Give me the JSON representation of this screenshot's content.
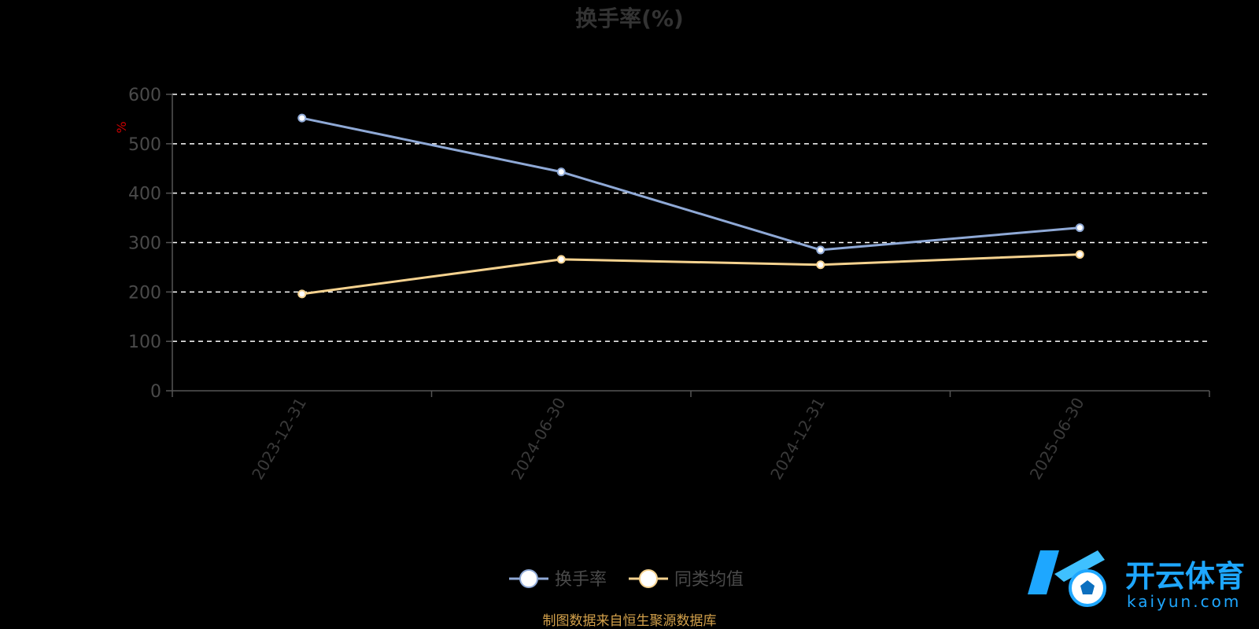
{
  "chart_data": {
    "type": "line",
    "title": "换手率(%)",
    "ylabel": "%",
    "xlabel": "",
    "categories": [
      "2023-12-31",
      "2024-06-30",
      "2024-12-31",
      "2025-06-30"
    ],
    "ylim": [
      0,
      600
    ],
    "yticks": [
      0,
      100,
      200,
      300,
      400,
      500,
      600
    ],
    "grid": true,
    "legend_position": "bottom-center",
    "series": [
      {
        "name": "换手率",
        "values": [
          552,
          443,
          285,
          330
        ],
        "color": "#8fa9d6"
      },
      {
        "name": "同类均值",
        "values": [
          196,
          266,
          255,
          276
        ],
        "color": "#f5d28f"
      }
    ]
  },
  "source_note": "制图数据来自恒生聚源数据库",
  "watermark": {
    "brand_cn": "开云体育",
    "brand_en": "kaiyun.com",
    "logo_letter": "K"
  },
  "colors": {
    "background": "#000000",
    "grid": "#ffffff",
    "axis": "#555555",
    "brand": "#1ea7ff"
  }
}
